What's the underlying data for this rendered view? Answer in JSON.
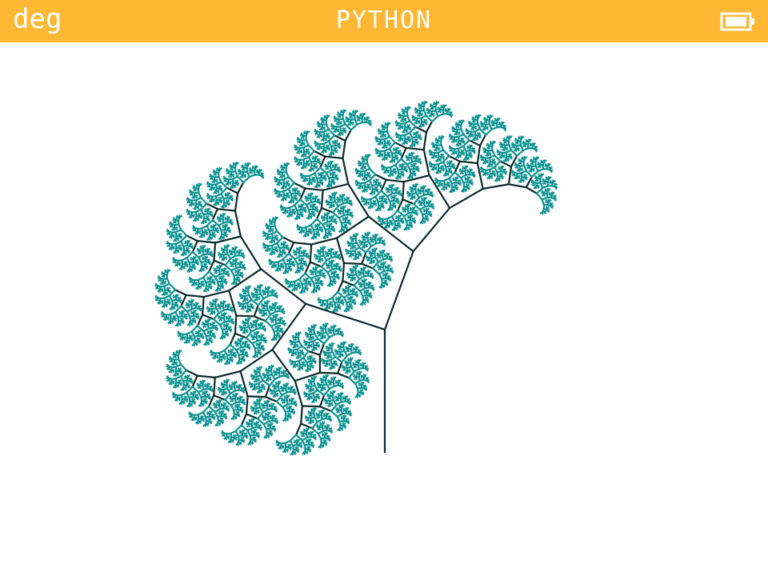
{
  "header": {
    "left": "deg",
    "title": "PYTHON"
  }
}
